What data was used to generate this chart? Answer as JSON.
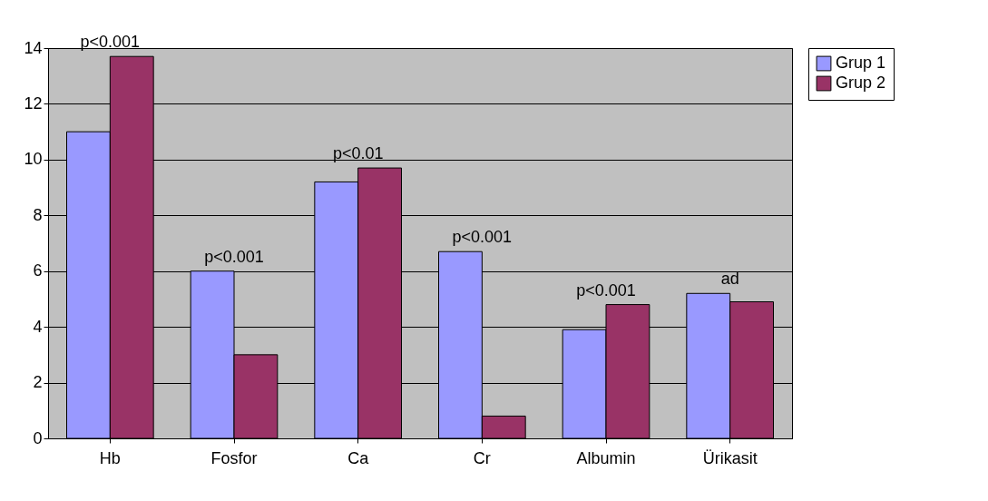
{
  "chart_data": {
    "type": "bar",
    "categories": [
      "Hb",
      "Fosfor",
      "Ca",
      "Cr",
      "Albumin",
      "Ürikasit"
    ],
    "series": [
      {
        "name": "Grup 1",
        "color": "#9999ff",
        "values": [
          11,
          6,
          9.2,
          6.7,
          3.9,
          5.2
        ]
      },
      {
        "name": "Grup 2",
        "color": "#993366",
        "values": [
          13.7,
          3,
          9.7,
          0.8,
          4.8,
          4.9
        ]
      }
    ],
    "ylim": [
      0,
      14
    ],
    "yticks": [
      0,
      2,
      4,
      6,
      8,
      10,
      12,
      14
    ],
    "grid": "y",
    "legend": "right",
    "annotations": [
      {
        "text": "p<0.001",
        "x": "Hb",
        "y": 13.7
      },
      {
        "text": "p<0.001",
        "x": "Fosfor",
        "y": 6
      },
      {
        "text": "p<0.01",
        "x": "Ca",
        "y": 9.7
      },
      {
        "text": "p<0.001",
        "x": "Cr",
        "y": 6.7
      },
      {
        "text": "p<0.001",
        "x": "Albumin",
        "y": 4.8
      },
      {
        "text": "ad",
        "x": "Ürikasit",
        "y": 5.2
      }
    ]
  }
}
